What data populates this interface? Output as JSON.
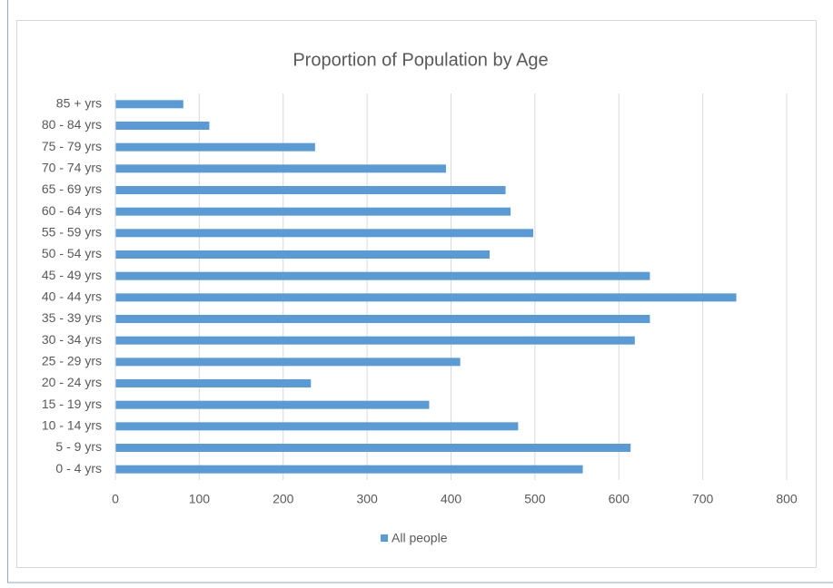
{
  "chart_data": {
    "type": "bar",
    "orientation": "horizontal",
    "title": "Proportion of Population by Age",
    "categories": [
      "0 - 4 yrs",
      "5 - 9 yrs",
      "10 - 14 yrs",
      "15 - 19 yrs",
      "20 - 24 yrs",
      "25 - 29 yrs",
      "30 - 34 yrs",
      "35 - 39 yrs",
      "40 - 44 yrs",
      "45 - 49 yrs",
      "50 - 54 yrs",
      "55 - 59 yrs",
      "60 - 64 yrs",
      "65 - 69 yrs",
      "70 - 74 yrs",
      "75 - 79 yrs",
      "80 - 84 yrs",
      "85 + yrs"
    ],
    "series": [
      {
        "name": "All people",
        "color": "#5b9bd5",
        "values": [
          557,
          614,
          480,
          374,
          233,
          411,
          619,
          637,
          740,
          637,
          446,
          498,
          471,
          465,
          394,
          238,
          112,
          81
        ]
      }
    ],
    "xlim": [
      0,
      800
    ],
    "xticks": [
      0,
      100,
      200,
      300,
      400,
      500,
      600,
      700,
      800
    ],
    "grid": true,
    "legend": "bottom"
  }
}
